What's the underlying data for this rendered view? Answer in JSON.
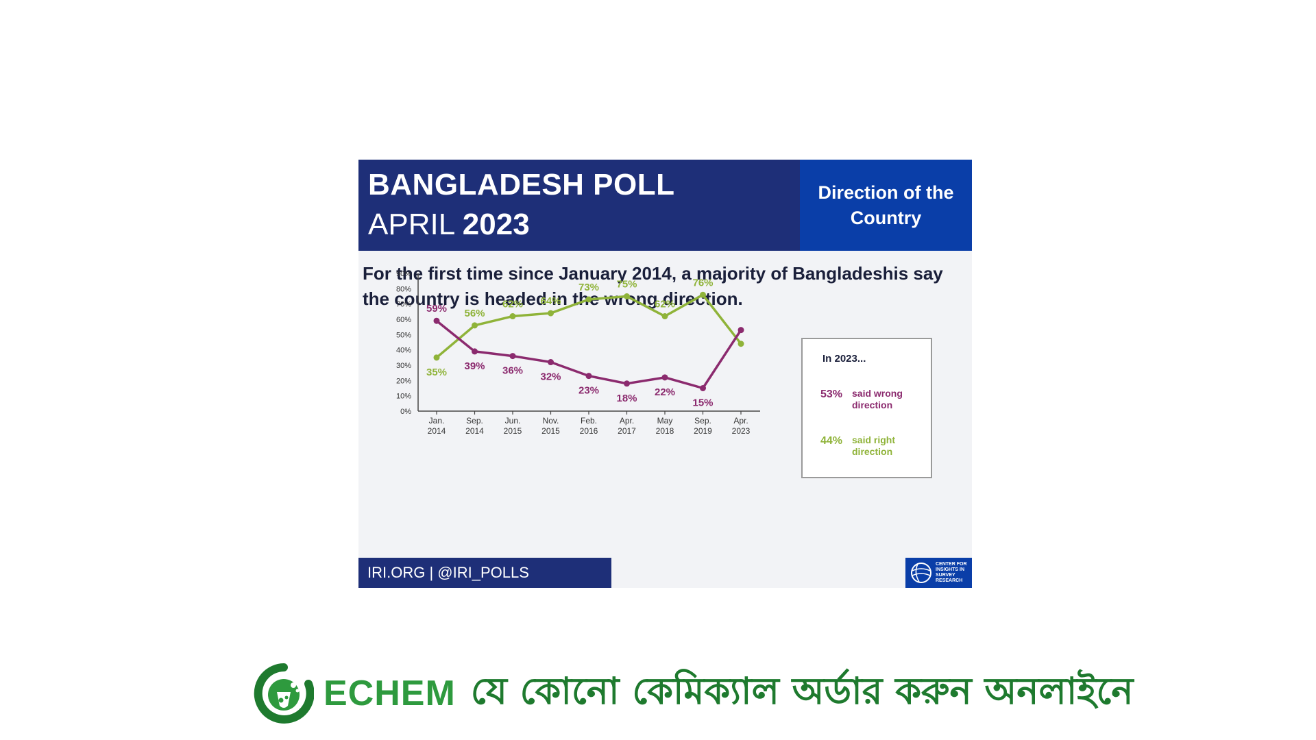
{
  "header": {
    "title": "BANGLADESH POLL",
    "month": "APRIL",
    "year": "2023",
    "section": "Direction of the Country"
  },
  "headline": "For the first time since January 2014, a majority of Bangladeshis say the country is headed in the wrong direction.",
  "callout": {
    "title": "In 2023...",
    "wrong_value": "53%",
    "wrong_label_line1": "said wrong",
    "wrong_label_line2": "direction",
    "right_value": "44%",
    "right_label_line1": "said right",
    "right_label_line2": "direction"
  },
  "footer": {
    "text": "IRI.ORG | @IRI_POLLS",
    "logo_line1": "CENTER FOR",
    "logo_line2": "INSIGHTS IN",
    "logo_line3": "SURVEY",
    "logo_line4": "RESEARCH"
  },
  "brand": {
    "name": "ECHEM",
    "tagline": "যে কোনো কেমিক্যাল অর্ডার করুন অনলাইনে"
  },
  "colors": {
    "header_bg": "#1e2f78",
    "header_accent_bg": "#0a3ea8",
    "right_direction": "#8fb339",
    "wrong_direction": "#8b2a6e",
    "brand_green": "#2e9a3e"
  },
  "chart_data": {
    "type": "line",
    "categories": [
      [
        "Jan.",
        "2014"
      ],
      [
        "Sep.",
        "2014"
      ],
      [
        "Jun.",
        "2015"
      ],
      [
        "Nov.",
        "2015"
      ],
      [
        "Feb.",
        "2016"
      ],
      [
        "Apr.",
        "2017"
      ],
      [
        "May",
        "2018"
      ],
      [
        "Sep.",
        "2019"
      ],
      [
        "Apr.",
        "2023"
      ]
    ],
    "y_ticks": [
      "0%",
      "10%",
      "20%",
      "30%",
      "40%",
      "50%",
      "60%",
      "70%",
      "80%",
      "90%"
    ],
    "ylim": [
      0,
      90
    ],
    "grid": false,
    "series": [
      {
        "key": "right",
        "color": "#8fb339",
        "values": [
          35,
          56,
          62,
          64,
          73,
          75,
          62,
          76,
          44
        ],
        "labels": [
          "35%",
          "56%",
          "62%",
          "64%",
          "73%",
          "75%",
          "62%",
          "76%",
          ""
        ]
      },
      {
        "key": "wrong",
        "color": "#8b2a6e",
        "values": [
          59,
          39,
          36,
          32,
          23,
          18,
          22,
          15,
          53
        ],
        "labels": [
          "59%",
          "39%",
          "36%",
          "32%",
          "23%",
          "18%",
          "22%",
          "15%",
          ""
        ]
      }
    ]
  }
}
